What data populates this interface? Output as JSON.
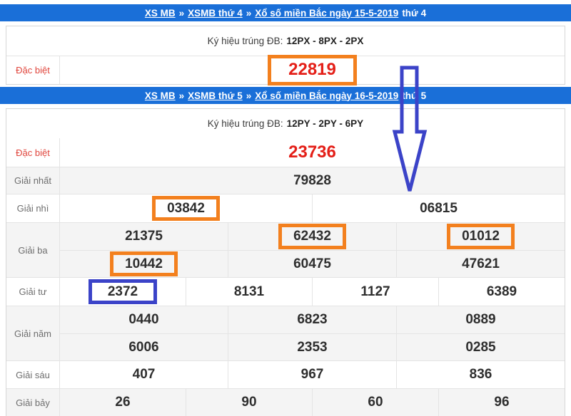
{
  "colors": {
    "header_bar_blue": "#1a6fd8",
    "annotation_orange": "#f3801e",
    "annotation_blue": "#3b43c8",
    "special_number_red": "#e41f18",
    "special_label_red": "#e0453c"
  },
  "breadcrumb1": {
    "links": [
      "XS MB",
      "XSMB thứ 4",
      "Xổ số miền Bắc ngày 15-5-2019"
    ],
    "separator": "»",
    "suffix": "thứ 4"
  },
  "table1": {
    "symbol_label": "Ký hiệu trúng ĐB:",
    "symbol_value": "12PX - 8PX - 2PX",
    "special_label": "Đặc biệt",
    "special_value": "22819",
    "special_highlight": "orange"
  },
  "breadcrumb2": {
    "links": [
      "XS MB",
      "XSMB thứ 5",
      "Xổ số miền Bắc ngày 16-5-2019"
    ],
    "separator": "»",
    "suffix": "thứ 5"
  },
  "table2": {
    "symbol_label": "Ký hiệu trúng ĐB:",
    "symbol_value": "12PY - 2PY - 6PY",
    "rows": [
      {
        "label": "Đặc biệt",
        "cells": [
          {
            "value": "23736"
          }
        ]
      },
      {
        "label": "Giải nhất",
        "cells": [
          {
            "value": "79828"
          }
        ]
      },
      {
        "label": "Giải nhì",
        "cells": [
          {
            "value": "03842",
            "box": "orange"
          },
          {
            "value": "06815"
          }
        ]
      },
      {
        "label": "Giải ba",
        "sub": [
          [
            {
              "value": "21375"
            },
            {
              "value": "62432",
              "box": "orange"
            },
            {
              "value": "01012",
              "box": "orange"
            }
          ],
          [
            {
              "value": "10442",
              "box": "orange"
            },
            {
              "value": "60475"
            },
            {
              "value": "47621"
            }
          ]
        ]
      },
      {
        "label": "Giải tư",
        "cells": [
          {
            "value": "2372",
            "box": "blue"
          },
          {
            "value": "8131"
          },
          {
            "value": "1127"
          },
          {
            "value": "6389"
          }
        ]
      },
      {
        "label": "Giải năm",
        "sub": [
          [
            {
              "value": "0440"
            },
            {
              "value": "6823"
            },
            {
              "value": "0889"
            }
          ],
          [
            {
              "value": "6006"
            },
            {
              "value": "2353"
            },
            {
              "value": "0285"
            }
          ]
        ]
      },
      {
        "label": "Giải sáu",
        "cells": [
          {
            "value": "407"
          },
          {
            "value": "967"
          },
          {
            "value": "836"
          }
        ]
      },
      {
        "label": "Giải bảy",
        "cells": [
          {
            "value": "26"
          },
          {
            "value": "90"
          },
          {
            "value": "60"
          },
          {
            "value": "96"
          }
        ]
      }
    ]
  },
  "annotations": {
    "arrow": {
      "type": "down-arrow",
      "color": "#3b43c8"
    },
    "highlight_boxes": "orange and blue outline boxes marking selected numbers"
  }
}
